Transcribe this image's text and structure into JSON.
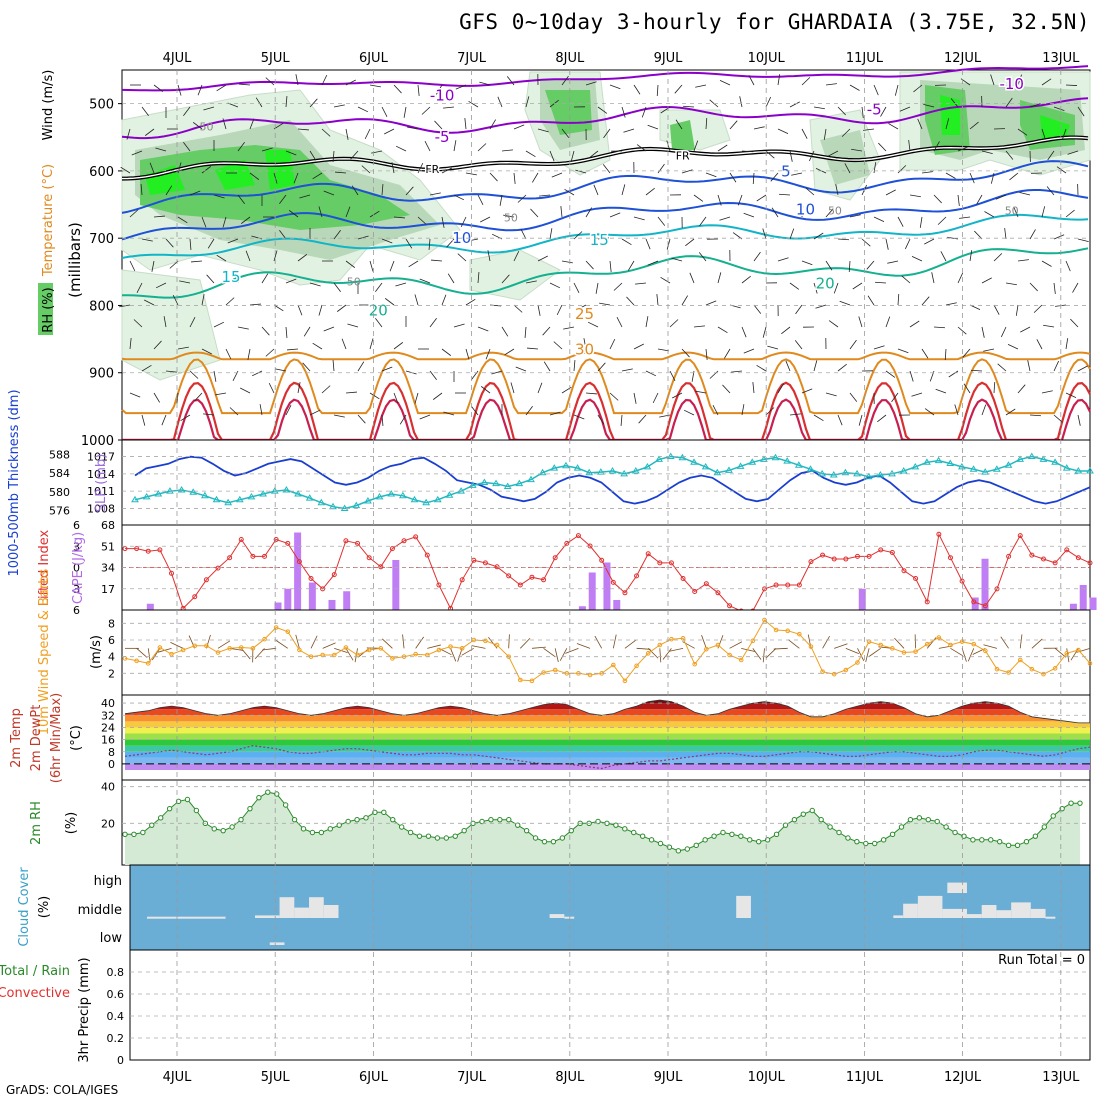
{
  "title": "GFS 0~10day 3-hourly for GHARDAIA (3.75E, 32.5N)",
  "credit": "GrADS: COLA/IGES",
  "dates": [
    "4JUL",
    "5JUL",
    "6JUL",
    "7JUL",
    "8JUL",
    "9JUL",
    "10JUL",
    "11JUL",
    "12JUL",
    "13JUL"
  ],
  "colors": {
    "temp_cold": "#8b00c8",
    "temp_mid": "#1e50d8",
    "temp_cool": "#12b4c8",
    "temp_warm": "#14b090",
    "temp_hot": "#e08a1e",
    "temp_vhot": "#d83030",
    "freezing": "#000000",
    "rh_light": "#e2f2e2",
    "rh_mid": "#b9d8b9",
    "rh_dark": "#66cc66",
    "rh_vdark": "#22ee22",
    "thickness": "#1a3fd0",
    "slp": "#22b8c0",
    "lifted": "#e03030",
    "cape": "#c07ef5",
    "wind": "#f0a020",
    "rh2m": "#2a8a2a",
    "rh2m_fill": "#d4ead4",
    "cloud_bg": "#6aaed6",
    "cloud": "#e6e6e6"
  },
  "chart_data": [
    {
      "type": "contour",
      "panel": "upper-air",
      "ylabel_parts": [
        "RH (%)",
        "Temperature (°C)",
        "Wind (m/s)",
        "(millibars)"
      ],
      "yticks": [
        500,
        600,
        700,
        800,
        900,
        1000
      ],
      "ylim": [
        450,
        1000
      ],
      "isotherm_labels": [
        {
          "text": "-10",
          "day": 2.7,
          "p": 495
        },
        {
          "text": "-10",
          "day": 8.5,
          "p": 478
        },
        {
          "text": "-5",
          "day": 2.7,
          "p": 557
        },
        {
          "text": "-5",
          "day": 7.1,
          "p": 516
        },
        {
          "text": "FR",
          "day": 2.6,
          "p": 603
        },
        {
          "text": "FR",
          "day": 5.15,
          "p": 583
        },
        {
          "text": "5",
          "day": 6.2,
          "p": 608
        },
        {
          "text": "10",
          "day": 2.9,
          "p": 707
        },
        {
          "text": "10",
          "day": 6.4,
          "p": 665
        },
        {
          "text": "15",
          "day": 0.55,
          "p": 765
        },
        {
          "text": "15",
          "day": 4.3,
          "p": 710
        },
        {
          "text": "20",
          "day": 2.05,
          "p": 815
        },
        {
          "text": "20",
          "day": 6.6,
          "p": 775
        },
        {
          "text": "25",
          "day": 4.15,
          "p": 820
        },
        {
          "text": "30",
          "day": 4.15,
          "p": 873
        }
      ],
      "rh_labels": [
        {
          "text": "50",
          "day": 0.3,
          "p": 540
        },
        {
          "text": "50",
          "day": 1.8,
          "p": 770
        },
        {
          "text": "50",
          "day": 3.4,
          "p": 675
        },
        {
          "text": "50",
          "day": 6.7,
          "p": 665
        },
        {
          "text": "50",
          "day": 8.5,
          "p": 665
        }
      ]
    },
    {
      "type": "line",
      "panel": "thickness-slp",
      "ylabel_left": "1000-500mb Thickness (dm)",
      "ylabel_right": "SLP (mb)",
      "left_ticks": [
        576,
        580,
        584,
        588
      ],
      "right_ticks": [
        1008,
        1011,
        1014,
        1017
      ],
      "series": [
        {
          "axis": "left",
          "values": [
            583.5,
            585,
            585.5,
            586,
            587,
            587.5,
            587.3,
            586,
            584.5,
            583.5,
            584,
            585,
            586,
            586.5,
            587,
            586.5,
            585,
            583.5,
            582,
            581.5,
            582,
            583,
            584.5,
            585.5,
            586,
            587,
            587.3,
            586,
            584.5,
            582.5,
            582,
            581.5,
            580.5,
            579,
            578.5,
            578,
            578.5,
            580,
            582,
            583,
            583.5,
            583,
            582,
            580,
            578,
            577.5,
            578,
            579,
            580.5,
            582,
            583,
            583.5,
            583,
            581.5,
            580,
            578.5,
            578,
            578.5,
            580.5,
            582.5,
            584,
            584.5,
            583,
            582,
            581.5,
            582,
            583,
            583.5,
            582,
            580,
            578,
            577.5,
            578,
            579.5,
            581,
            582,
            582.5,
            582,
            581,
            580,
            579,
            578,
            577.5,
            578,
            579,
            580,
            581
          ]
        },
        {
          "axis": "right",
          "values": [
            1009.5,
            1010,
            1010.5,
            1011,
            1011.2,
            1010.8,
            1010.2,
            1009.5,
            1009,
            1009.5,
            1010,
            1010.5,
            1011,
            1011.2,
            1010.5,
            1009.8,
            1009,
            1008.3,
            1008,
            1008.5,
            1009.3,
            1010,
            1010.5,
            1010.2,
            1009.5,
            1009,
            1009.5,
            1010.3,
            1011,
            1012,
            1012.5,
            1012.3,
            1011.8,
            1012.3,
            1013,
            1014.2,
            1015,
            1015.4,
            1015,
            1014.2,
            1014.3,
            1014.5,
            1014,
            1014.5,
            1015.2,
            1016.5,
            1017,
            1016.8,
            1016,
            1015.2,
            1014.2,
            1014.6,
            1015.3,
            1016,
            1016.5,
            1016.8,
            1016.2,
            1015.5,
            1014.8,
            1014,
            1013.8,
            1014.2,
            1014,
            1013.5,
            1013.8,
            1014,
            1014.5,
            1015.2,
            1016,
            1016.3,
            1015.8,
            1015.2,
            1014.8,
            1014.3,
            1014.8,
            1015.5,
            1016.5,
            1017,
            1016.5,
            1016,
            1015,
            1014.5,
            1014.5
          ]
        }
      ]
    },
    {
      "type": "bar+line",
      "panel": "lifted-cape",
      "ylabel_left": "Lifted Index",
      "ylabel_right": "CAPE (J/kg)",
      "left_ticks": [
        -6,
        -3,
        0,
        3,
        6
      ],
      "right_ticks": [
        17,
        34,
        51,
        68
      ],
      "cape_bars": [
        {
          "day": 0.1,
          "value": 5
        },
        {
          "day": 1.4,
          "value": 6
        },
        {
          "day": 1.5,
          "value": 17
        },
        {
          "day": 1.6,
          "value": 62
        },
        {
          "day": 1.75,
          "value": 22
        },
        {
          "day": 1.95,
          "value": 8
        },
        {
          "day": 2.1,
          "value": 15
        },
        {
          "day": 2.6,
          "value": 40
        },
        {
          "day": 4.5,
          "value": 3
        },
        {
          "day": 4.6,
          "value": 30
        },
        {
          "day": 4.75,
          "value": 38
        },
        {
          "day": 4.85,
          "value": 8
        },
        {
          "day": 7.35,
          "value": 17
        },
        {
          "day": 8.5,
          "value": 10
        },
        {
          "day": 8.6,
          "value": 41
        },
        {
          "day": 9.5,
          "value": 5
        },
        {
          "day": 9.6,
          "value": 20
        },
        {
          "day": 9.7,
          "value": 10
        }
      ],
      "lifted_values": [
        1.2,
        1.2,
        1.4,
        1.3,
        3.1,
        5.8,
        4.9,
        3.6,
        2.7,
        1.9,
        0.5,
        1.8,
        1.8,
        0.5,
        0.8,
        2.2,
        3.5,
        4.3,
        3.2,
        0.6,
        0.8,
        1.9,
        2.6,
        1.2,
        0.6,
        0.3,
        1.7,
        4.0,
        5.8,
        3.6,
        2.1,
        2.3,
        2.6,
        3.3,
        4.0,
        3.4,
        3.6,
        1.9,
        0.8,
        0.2,
        1.0,
        2.1,
        3.8,
        4.6,
        3.3,
        1.6,
        2.3,
        2.3,
        3.5,
        4.5,
        3.9,
        4.6,
        5.6,
        6.0,
        6.0,
        4.3,
        4.0,
        4.0,
        4.0,
        2.2,
        1.7,
        2.0,
        2.0,
        1.8,
        1.8,
        1.3,
        1.5,
        2.9,
        3.5,
        5.3,
        0.1,
        1.9,
        3.7,
        5.3,
        5.6,
        4.3,
        1.8,
        0.2,
        1.7,
        2.0,
        2.3,
        1.3,
        1.9,
        2.3
      ]
    },
    {
      "type": "line",
      "panel": "wind10m",
      "ylabel_left": "10m Wind Speed & Barbs",
      "ylabel_right": "(m/s)",
      "left_ticks": [
        2,
        4,
        6,
        8
      ],
      "values": [
        3.8,
        3.5,
        3.2,
        5.1,
        4.3,
        4.8,
        5.3,
        5.3,
        4.5,
        5.0,
        5.1,
        5.0,
        6.1,
        7.5,
        7.0,
        4.8,
        4.0,
        4.2,
        4.2,
        5.1,
        4.2,
        4.8,
        5.0,
        3.8,
        4.0,
        4.3,
        4.2,
        4.8,
        5.2,
        5.0,
        6.0,
        5.9,
        5.4,
        4.0,
        1.2,
        1.1,
        2.1,
        2.4,
        2.0,
        2.0,
        1.8,
        2.0,
        3.0,
        1.1,
        2.9,
        4.4,
        5.4,
        6.1,
        6.2,
        3.1,
        4.9,
        5.4,
        4.2,
        3.6,
        5.9,
        8.4,
        7.2,
        7.1,
        6.7,
        5.2,
        2.2,
        1.9,
        2.4,
        3.3,
        5.8,
        5.4,
        5.0,
        4.5,
        4.6,
        5.5,
        6.3,
        5.4,
        5.8,
        5.5,
        4.7,
        2.5,
        2.1,
        3.6,
        2.5,
        1.9,
        2.6,
        4.4,
        4.8,
        3.2
      ]
    },
    {
      "type": "area",
      "panel": "temp2m",
      "ylabel_parts": [
        "2m Temp",
        "2m DewPt",
        "(6hr Min/Max)",
        "(°C)"
      ],
      "left_ticks": [
        0,
        8,
        16,
        24,
        32,
        40
      ],
      "temp_max": [
        33,
        34,
        35,
        37,
        38,
        37,
        35,
        33,
        32,
        33,
        35,
        37,
        38,
        37,
        35,
        33,
        32,
        33,
        35,
        37,
        38,
        37,
        35,
        33,
        32,
        33,
        35,
        37,
        38,
        37,
        35,
        33,
        32,
        33,
        35,
        37,
        39,
        40,
        39,
        36,
        33,
        32,
        33,
        36,
        38,
        41,
        42,
        41,
        38,
        34,
        32,
        33,
        36,
        38,
        40,
        41,
        40,
        38,
        34,
        31,
        31,
        33,
        36,
        38,
        40,
        41,
        40,
        37,
        33,
        31,
        32,
        35,
        38,
        40,
        41,
        40,
        38,
        34,
        31,
        30,
        29,
        28,
        27,
        27
      ],
      "dewpoint": [
        5,
        6,
        7,
        8,
        9,
        8,
        7,
        6,
        7,
        8,
        10,
        12,
        11,
        10,
        8,
        7,
        7,
        8,
        9,
        10,
        10,
        9,
        8,
        7,
        6,
        6,
        7,
        7,
        7,
        6,
        6,
        5,
        4,
        3,
        2,
        1,
        0,
        0,
        0,
        -1,
        -2,
        -3,
        -1,
        0,
        1,
        2,
        2,
        3,
        4,
        5,
        6,
        7,
        7,
        6,
        5,
        5,
        6,
        7,
        8,
        8,
        7,
        6,
        5,
        5,
        6,
        7,
        8,
        8,
        7,
        6,
        5,
        5,
        6,
        8,
        9,
        9,
        8,
        7,
        6,
        5,
        6,
        8,
        10,
        11
      ]
    },
    {
      "type": "area",
      "panel": "rh2m",
      "ylabel_left": "2m RH",
      "ylabel_right": "(%)",
      "left_ticks": [
        20,
        40
      ],
      "values": [
        14,
        14,
        15,
        19,
        23,
        28,
        32,
        33,
        27,
        20,
        17,
        16,
        18,
        22,
        28,
        34,
        37,
        36,
        30,
        22,
        17,
        15,
        15,
        17,
        19,
        21,
        22,
        23,
        26,
        26,
        22,
        18,
        15,
        13,
        13,
        12,
        12,
        13,
        16,
        20,
        21,
        22,
        22,
        22,
        19,
        16,
        12,
        10,
        10,
        12,
        16,
        20,
        20,
        21,
        20,
        19,
        17,
        15,
        13,
        11,
        9,
        7,
        5,
        6,
        8,
        11,
        13,
        15,
        14,
        13,
        11,
        10,
        11,
        14,
        19,
        22,
        25,
        27,
        22,
        18,
        15,
        12,
        10,
        9,
        9,
        11,
        14,
        18,
        22,
        23,
        22,
        21,
        18,
        15,
        13,
        11,
        11,
        11,
        10,
        8,
        8,
        10,
        13,
        18,
        24,
        28,
        31,
        31
      ]
    },
    {
      "type": "area",
      "panel": "cloud",
      "ylabel_left": "Cloud Cover",
      "ylabel_right": "(%)",
      "tick_labels": [
        "high",
        "middle",
        "low"
      ],
      "cloud_blocks": [
        {
          "level": "high",
          "day": 8.15,
          "width": 0.2,
          "value": 0.4
        },
        {
          "level": "mid",
          "day": 0.0,
          "width": 0.8,
          "value": 0.05
        },
        {
          "level": "mid",
          "day": 1.1,
          "width": 0.25,
          "value": 0.1
        },
        {
          "level": "mid",
          "day": 1.35,
          "width": 0.15,
          "value": 0.8
        },
        {
          "level": "mid",
          "day": 1.5,
          "width": 0.15,
          "value": 0.4
        },
        {
          "level": "mid",
          "day": 1.65,
          "width": 0.15,
          "value": 0.8
        },
        {
          "level": "mid",
          "day": 1.8,
          "width": 0.15,
          "value": 0.5
        },
        {
          "level": "mid",
          "day": 4.1,
          "width": 0.15,
          "value": 0.15
        },
        {
          "level": "mid",
          "day": 4.25,
          "width": 0.1,
          "value": 0.05
        },
        {
          "level": "mid",
          "day": 6.0,
          "width": 0.15,
          "value": 0.85
        },
        {
          "level": "mid",
          "day": 7.6,
          "width": 0.1,
          "value": 0.1
        },
        {
          "level": "mid",
          "day": 7.7,
          "width": 0.15,
          "value": 0.55
        },
        {
          "level": "mid",
          "day": 7.85,
          "width": 0.25,
          "value": 0.85
        },
        {
          "level": "mid",
          "day": 8.1,
          "width": 0.25,
          "value": 0.35
        },
        {
          "level": "mid",
          "day": 8.35,
          "width": 0.15,
          "value": 0.15
        },
        {
          "level": "mid",
          "day": 8.5,
          "width": 0.15,
          "value": 0.5
        },
        {
          "level": "mid",
          "day": 8.65,
          "width": 0.15,
          "value": 0.3
        },
        {
          "level": "mid",
          "day": 8.8,
          "width": 0.2,
          "value": 0.6
        },
        {
          "level": "mid",
          "day": 9.0,
          "width": 0.15,
          "value": 0.35
        },
        {
          "level": "mid",
          "day": 9.15,
          "width": 0.1,
          "value": 0.05
        },
        {
          "level": "low",
          "day": 1.25,
          "width": 0.15,
          "value": 0.1
        }
      ]
    },
    {
      "type": "bar",
      "panel": "precip",
      "ylabel_parts": [
        "Total / Rain",
        "Convective",
        "3hr Precip (mm)"
      ],
      "left_ticks": [
        0,
        0.2,
        0.4,
        0.6,
        0.8
      ],
      "ylim": [
        0,
        1
      ],
      "annotation": "Run Total = 0"
    }
  ]
}
